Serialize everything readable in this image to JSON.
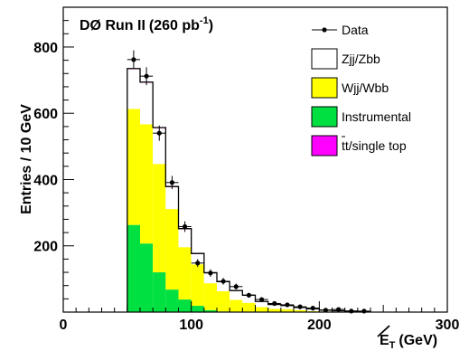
{
  "chart_data": {
    "type": "bar",
    "title_main": "DØ Run II",
    "title_lumi": "(260 pb",
    "title_lumi_sup": "-1",
    "title_lumi_close": ")",
    "ylabel": "Entries / 10 GeV",
    "xlabel": "E",
    "xlabel_sub": "T",
    "xlabel_unit": "(GeV)",
    "xlim": [
      0,
      300
    ],
    "ylim": [
      0,
      920
    ],
    "x_ticks": [
      0,
      100,
      200,
      300
    ],
    "y_ticks": [
      200,
      400,
      600,
      800
    ],
    "x_tick_labels": [
      "0",
      "100",
      "200",
      "300"
    ],
    "y_tick_labels": [
      "200",
      "400",
      "600",
      "800"
    ],
    "bin_width": 10,
    "bin_edges": [
      50,
      60,
      70,
      80,
      90,
      100,
      110,
      120,
      130,
      140,
      150,
      160,
      170,
      180,
      190,
      200,
      210,
      220,
      230,
      240
    ],
    "stack": [
      {
        "name": "Instrumental",
        "color": "#00e040",
        "values": [
          263,
          207,
          120,
          68,
          38,
          19,
          6,
          2,
          1,
          0,
          0,
          0,
          0,
          0,
          0,
          0,
          0,
          0,
          0
        ]
      },
      {
        "name": "Wjj/Wbb",
        "color": "#ffff00",
        "values": [
          350,
          360,
          327,
          243,
          158,
          125,
          81,
          61,
          36,
          28,
          15,
          10,
          9,
          6,
          3,
          2,
          1,
          1,
          0
        ]
      },
      {
        "name": "Zjj/Zbb",
        "color": "#ffffff",
        "values": [
          120,
          125,
          108,
          66,
          54,
          31,
          31,
          28,
          27,
          22,
          16,
          12,
          11,
          8,
          7,
          4,
          3,
          2,
          1
        ]
      },
      {
        "name": "tt/single top",
        "color": "#ff00ff",
        "values": [
          2,
          2,
          2,
          2,
          2,
          2,
          1,
          1,
          1,
          1,
          1,
          1,
          0,
          0,
          0,
          0,
          0,
          0,
          0
        ]
      }
    ],
    "data_points": {
      "x": [
        55,
        65,
        75,
        85,
        95,
        105,
        115,
        125,
        135,
        145,
        155,
        165,
        175,
        185,
        195,
        205,
        215,
        225,
        235
      ],
      "y": [
        762,
        712,
        540,
        391,
        258,
        148,
        118,
        93,
        77,
        51,
        38,
        26,
        22,
        16,
        12,
        6,
        8,
        3,
        3
      ],
      "err": [
        28,
        27,
        23,
        20,
        16,
        12,
        11,
        10,
        9,
        7,
        6,
        5,
        5,
        4,
        3,
        2,
        3,
        2,
        2
      ]
    },
    "legend": {
      "placement": "top-right",
      "entries": [
        {
          "label": "Data",
          "kind": "marker"
        },
        {
          "label": "Zjj/Zbb",
          "kind": "box",
          "color": "#ffffff"
        },
        {
          "label": "Wjj/Wbb",
          "kind": "box",
          "color": "#ffff00"
        },
        {
          "label": "Instrumental",
          "kind": "box",
          "color": "#00e040"
        },
        {
          "label": "tt/single top",
          "label_over": "t",
          "kind": "box",
          "color": "#ff00ff"
        }
      ]
    }
  }
}
